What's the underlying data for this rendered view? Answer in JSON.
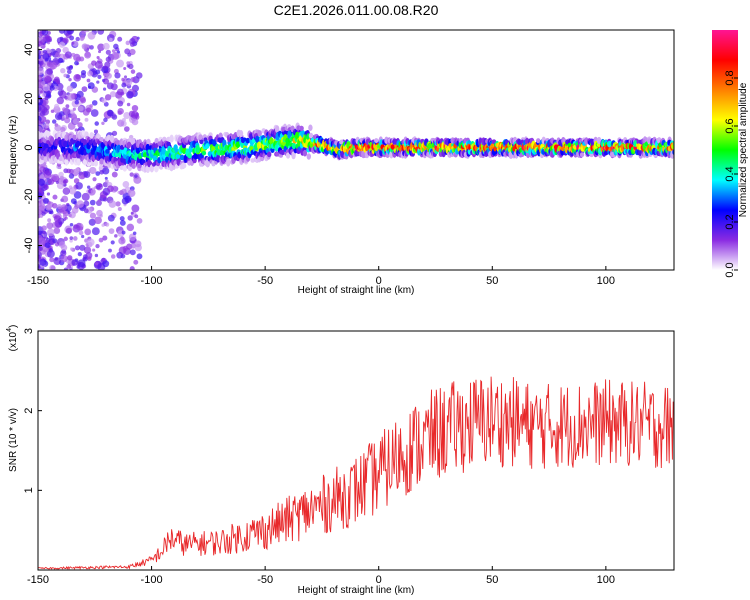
{
  "title": "C2E1.2026.011.00.08.R20",
  "chart_data": [
    {
      "type": "heatmap",
      "xlabel": "Height of straight line (km)",
      "ylabel": "Frequency (Hz)",
      "xlim": [
        -150,
        130
      ],
      "ylim": [
        -50,
        48
      ],
      "xticks": [
        -150,
        -100,
        -50,
        0,
        50,
        100
      ],
      "yticks": [
        -40,
        -20,
        0,
        20,
        40
      ],
      "colorbar": {
        "label": "Normalized spectral amplitude",
        "range": [
          0.0,
          1.0
        ],
        "ticks": [
          "0.0",
          "0.2",
          "0.4",
          "0.6",
          "0.8"
        ],
        "tick_values": [
          0.0,
          0.2,
          0.4,
          0.6,
          0.8
        ],
        "colors": [
          "#ffffff",
          "#8a2be2",
          "#0000ff",
          "#00ffff",
          "#00ff00",
          "#ffff00",
          "#ff8000",
          "#ff0000",
          "#ff1493"
        ]
      },
      "ridge": {
        "description_points_x": [
          -150,
          -130,
          -110,
          -100,
          -80,
          -60,
          -45,
          -35,
          -25,
          -18,
          -10,
          0,
          50,
          100,
          130
        ],
        "center_freq": [
          0,
          0,
          -3,
          -3,
          -1,
          0,
          2,
          3,
          1,
          -1,
          0,
          0,
          0,
          0,
          0
        ],
        "peak_amplitude": [
          0.25,
          0.35,
          0.45,
          0.5,
          0.6,
          0.65,
          0.7,
          0.75,
          0.9,
          0.95,
          0.98,
          1.0,
          0.95,
          1.0,
          0.9
        ]
      }
    },
    {
      "type": "line",
      "xlabel": "Height of straight line (km)",
      "ylabel": "SNR (10 * v/v)",
      "ylabel_exponent_base": "x10",
      "ylabel_exponent_power": "4",
      "xlim": [
        -150,
        130
      ],
      "ylim": [
        0,
        3
      ],
      "xticks": [
        -150,
        -100,
        -50,
        0,
        50,
        100
      ],
      "yticks": [
        1,
        2,
        3
      ],
      "line_color": "#e8282a",
      "envelope": {
        "x": [
          -150,
          -110,
          -100,
          -95,
          -92,
          -85,
          -70,
          -50,
          -30,
          -10,
          0,
          10,
          25,
          35,
          50,
          70,
          100,
          130
        ],
        "mean": [
          0.02,
          0.04,
          0.12,
          0.25,
          0.4,
          0.32,
          0.35,
          0.5,
          0.75,
          1.0,
          1.2,
          1.45,
          1.7,
          1.8,
          1.9,
          1.8,
          1.85,
          1.8
        ],
        "spread": [
          0.01,
          0.02,
          0.06,
          0.12,
          0.18,
          0.15,
          0.17,
          0.25,
          0.35,
          0.45,
          0.5,
          0.55,
          0.6,
          0.6,
          0.6,
          0.55,
          0.55,
          0.55
        ]
      }
    }
  ]
}
